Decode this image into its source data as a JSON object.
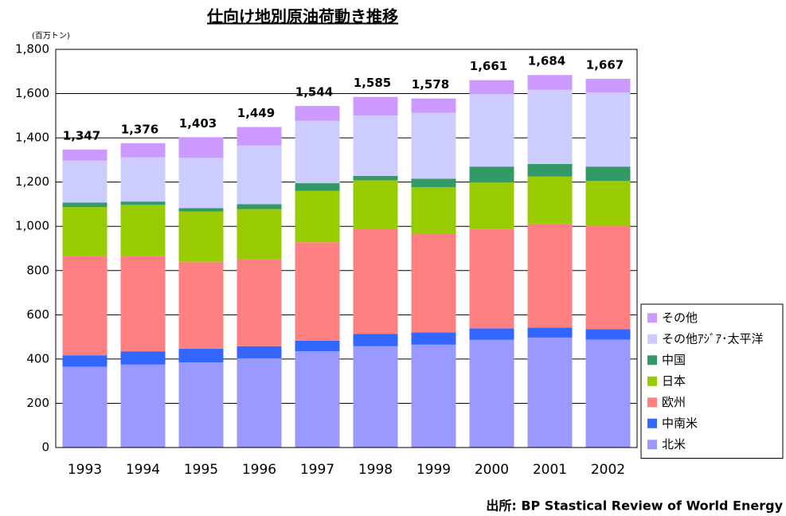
{
  "chart_data": {
    "type": "stacked_bar",
    "title": "仕向け地別原油荷動き推移",
    "unit_label": "(百万トン)",
    "source": "出所: BP Stastical Review of World Energy",
    "categories": [
      "1993",
      "1994",
      "1995",
      "1996",
      "1997",
      "1998",
      "1999",
      "2000",
      "2001",
      "2002"
    ],
    "series": [
      {
        "name": "北米",
        "color": "#9999ff",
        "values": [
          365,
          375,
          385,
          403,
          435,
          458,
          465,
          487,
          497,
          488
        ]
      },
      {
        "name": "中南米",
        "color": "#3366ff",
        "values": [
          52,
          60,
          62,
          55,
          48,
          55,
          55,
          52,
          45,
          47
        ]
      },
      {
        "name": "欧州",
        "color": "#ff8080",
        "values": [
          450,
          432,
          393,
          392,
          445,
          475,
          445,
          448,
          470,
          466
        ]
      },
      {
        "name": "日本",
        "color": "#99cc00",
        "values": [
          220,
          230,
          227,
          228,
          232,
          220,
          212,
          213,
          213,
          204
        ]
      },
      {
        "name": "中国",
        "color": "#339966",
        "values": [
          20,
          15,
          15,
          22,
          35,
          20,
          38,
          70,
          57,
          65
        ]
      },
      {
        "name": "その他ｱｼﾞｱ･太平洋",
        "color": "#ccccff",
        "values": [
          190,
          200,
          228,
          265,
          282,
          273,
          298,
          328,
          335,
          335
        ]
      },
      {
        "name": "その他",
        "color": "#cc99ff",
        "values": [
          50,
          64,
          93,
          84,
          67,
          84,
          65,
          63,
          67,
          62
        ]
      }
    ],
    "totals": [
      1347,
      1376,
      1403,
      1449,
      1544,
      1585,
      1578,
      1661,
      1684,
      1667
    ],
    "total_labels": [
      "1,347",
      "1,376",
      "1,403",
      "1,449",
      "1,544",
      "1,585",
      "1,578",
      "1,661",
      "1,684",
      "1,667"
    ],
    "ylim": [
      0,
      1800
    ],
    "yticks": [
      0,
      200,
      400,
      600,
      800,
      {
        "value": 1000,
        "label": "1,000"
      },
      {
        "value": 1200,
        "label": "1,200"
      },
      {
        "value": 1400,
        "label": "1,400"
      },
      {
        "value": 1600,
        "label": "1,600"
      },
      {
        "value": 1800,
        "label": "1,800"
      }
    ],
    "grid": true,
    "legend": "right"
  }
}
